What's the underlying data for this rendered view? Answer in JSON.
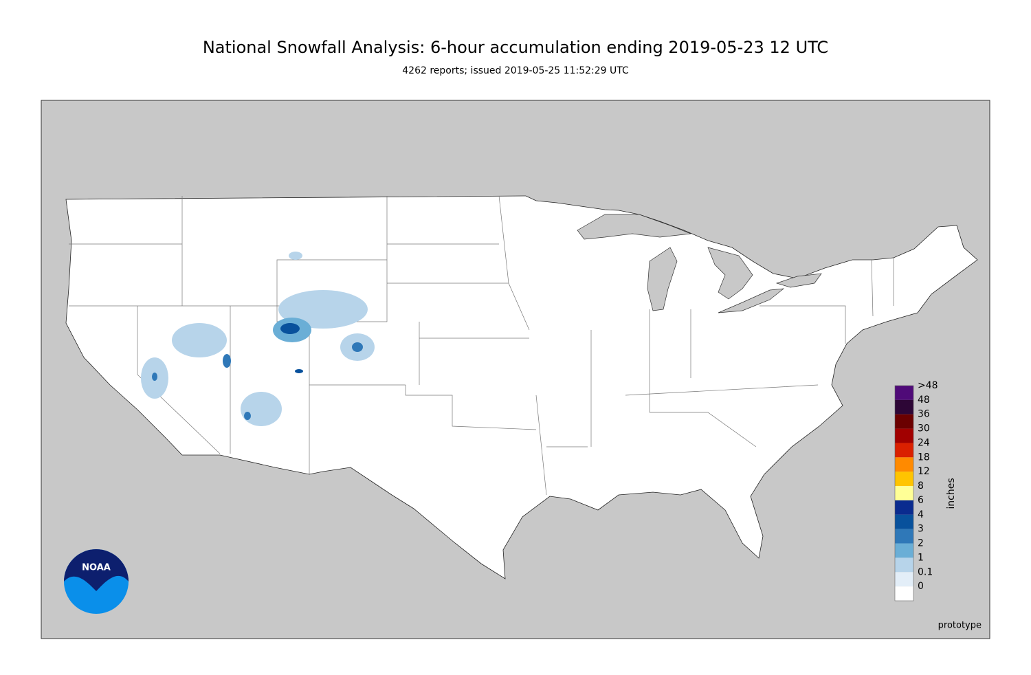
{
  "title": "National Snowfall Analysis: 6-hour accumulation ending 2019-05-23 12 UTC",
  "subtitle": "4262 reports; issued 2019-05-25 11:52:29 UTC",
  "legend": {
    "unit": "inches",
    "items": [
      {
        "label": ">48",
        "color": "#4f0a78"
      },
      {
        "label": "48",
        "color": "#2d0636"
      },
      {
        "label": "36",
        "color": "#6b0000"
      },
      {
        "label": "30",
        "color": "#a10000"
      },
      {
        "label": "24",
        "color": "#da2000"
      },
      {
        "label": "18",
        "color": "#ff8a00"
      },
      {
        "label": "12",
        "color": "#ffc400"
      },
      {
        "label": "8",
        "color": "#ffff96"
      },
      {
        "label": "6",
        "color": "#0a2b8f"
      },
      {
        "label": "4",
        "color": "#08519c"
      },
      {
        "label": "3",
        "color": "#2f78b8"
      },
      {
        "label": "2",
        "color": "#6aaed6"
      },
      {
        "label": "1",
        "color": "#b7d4ea"
      },
      {
        "label": "0.1",
        "color": "#e3eef8"
      },
      {
        "label": "0",
        "color": "#ffffff"
      }
    ]
  },
  "logo": "NOAA",
  "footer": "prototype"
}
